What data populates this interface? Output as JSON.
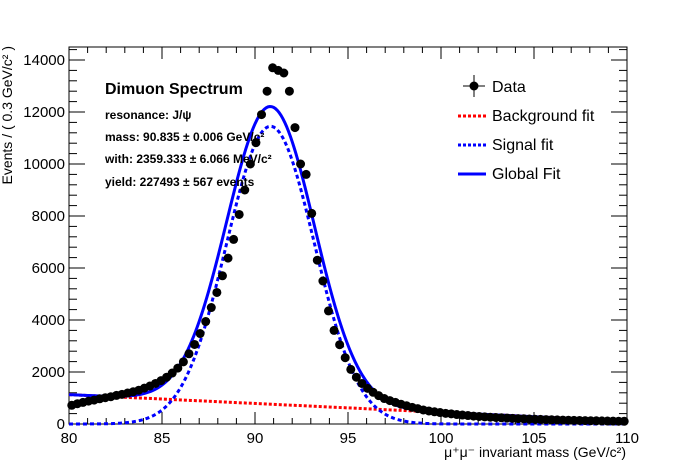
{
  "chart_data": {
    "type": "scatter",
    "xlabel": "μ⁺μ⁻ invariant mass (GeV/c²)",
    "ylabel": "Events / ( 0.3 GeV/c² )",
    "xlim": [
      80,
      110
    ],
    "ylim": [
      0,
      14500
    ],
    "x_ticks": [
      "80",
      "85",
      "90",
      "95",
      "100",
      "105",
      "110"
    ],
    "y_ticks": [
      "0",
      "2000",
      "4000",
      "6000",
      "8000",
      "10000",
      "12000",
      "14000"
    ],
    "grid": false,
    "legend_position": "top-right",
    "info_box": {
      "title": "Dimuon Spectrum",
      "lines": [
        "resonance: J/ψ",
        "mass: 90.835 ± 0.006 GeV/c²",
        "with: 2359.333 ± 6.066 MeV/c²",
        "yield: 227493 ± 567 events"
      ]
    },
    "series": [
      {
        "name": "Data",
        "style": "markers-with-error-bars",
        "color": "#000000",
        "x": [
          80.15,
          80.45,
          80.75,
          81.05,
          81.35,
          81.65,
          81.95,
          82.25,
          82.55,
          82.85,
          83.15,
          83.45,
          83.75,
          84.05,
          84.35,
          84.65,
          84.95,
          85.25,
          85.55,
          85.85,
          86.15,
          86.45,
          86.75,
          87.05,
          87.35,
          87.65,
          87.95,
          88.25,
          88.55,
          88.85,
          89.15,
          89.45,
          89.75,
          90.05,
          90.35,
          90.65,
          90.95,
          91.25,
          91.55,
          91.85,
          92.15,
          92.45,
          92.75,
          93.05,
          93.35,
          93.65,
          93.95,
          94.25,
          94.55,
          94.85,
          95.15,
          95.45,
          95.75,
          96.05,
          96.35,
          96.65,
          96.95,
          97.25,
          97.55,
          97.85,
          98.15,
          98.45,
          98.75,
          99.05,
          99.35,
          99.65,
          99.95,
          100.25,
          100.55,
          100.85,
          101.15,
          101.45,
          101.75,
          102.05,
          102.35,
          102.65,
          102.95,
          103.25,
          103.55,
          103.85,
          104.15,
          104.45,
          104.75,
          105.05,
          105.35,
          105.65,
          105.95,
          106.25,
          106.55,
          106.85,
          107.15,
          107.45,
          107.75,
          108.05,
          108.35,
          108.65,
          108.95,
          109.25,
          109.55,
          109.85
        ],
        "y": [
          720,
          780,
          830,
          880,
          920,
          970,
          1010,
          1050,
          1100,
          1140,
          1190,
          1240,
          1300,
          1380,
          1460,
          1560,
          1670,
          1800,
          1960,
          2150,
          2390,
          2700,
          3060,
          3480,
          3940,
          4480,
          5060,
          5700,
          6380,
          7100,
          8060,
          9000,
          10000,
          10820,
          11900,
          12800,
          13700,
          13600,
          13500,
          12800,
          11400,
          10000,
          9600,
          8100,
          6300,
          5500,
          4350,
          3600,
          3050,
          2550,
          2100,
          1800,
          1560,
          1370,
          1220,
          1090,
          980,
          900,
          830,
          760,
          700,
          640,
          590,
          540,
          500,
          470,
          440,
          410,
          390,
          365,
          345,
          325,
          305,
          290,
          275,
          262,
          250,
          238,
          228,
          218,
          208,
          200,
          192,
          184,
          177,
          170,
          163,
          157,
          151,
          146,
          141,
          136,
          131,
          127,
          123,
          119,
          115,
          112,
          108,
          105
        ]
      },
      {
        "name": "Background fit",
        "style": "dotted",
        "color": "#ff0000",
        "model": "linear",
        "x": [
          80,
          110
        ],
        "y": [
          1130,
          110
        ]
      },
      {
        "name": "Signal fit",
        "style": "dashed",
        "color": "#0000ff",
        "model": "gaussian",
        "mean": 90.835,
        "sigma": 2.359,
        "amplitude": 11450
      },
      {
        "name": "Global Fit",
        "style": "solid",
        "color": "#0000ff",
        "model": "gaussian+linear",
        "mean": 90.835,
        "sigma": 2.359,
        "amplitude": 11450
      }
    ],
    "legend": [
      "Data",
      "Background fit",
      "Signal fit",
      "Global Fit"
    ]
  }
}
